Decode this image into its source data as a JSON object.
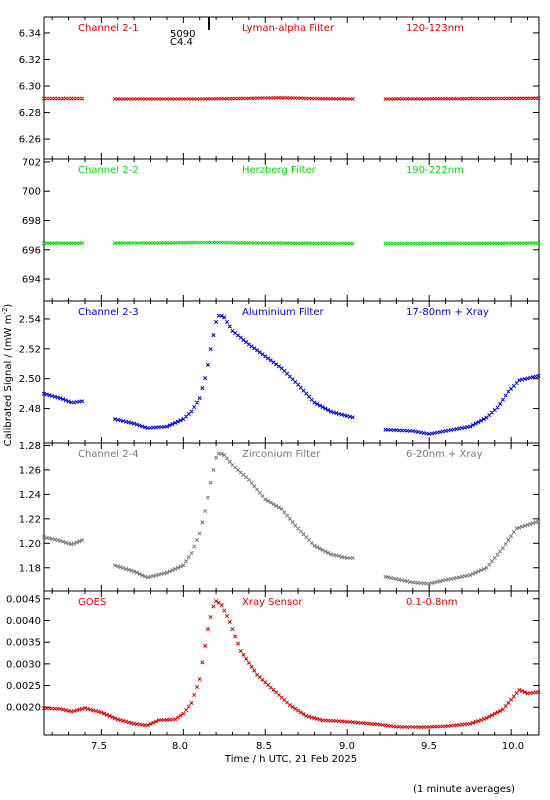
{
  "figure": {
    "ylabel": "Calibrated Signal / (mW m",
    "ylabel_sup": "-2",
    "ylabel_end": ")",
    "xlabel": "Time / h UTC, 21 Feb 2025",
    "footnote": "(1 minute averages)",
    "marker_top": "5090",
    "marker_bottom": "C4.4",
    "x_ticks": [
      "7.5",
      "8.0",
      "8.5",
      "9.0",
      "9.5",
      "10.0"
    ]
  },
  "chart_data": [
    {
      "type": "scatter",
      "name": "Channel 2-1",
      "filter": "Lyman-alpha Filter",
      "band": "120-123nm",
      "color": "#e00000",
      "xlim": [
        7.15,
        10.17
      ],
      "ylim": [
        6.245,
        6.352
      ],
      "y_ticks": [
        "6.26",
        "6.28",
        "6.30",
        "6.32",
        "6.34"
      ],
      "gaps": [
        [
          7.39,
          7.58
        ],
        [
          9.04,
          9.22
        ]
      ],
      "curve": [
        [
          7.15,
          6.2905
        ],
        [
          7.39,
          6.2905
        ],
        [
          7.58,
          6.2902
        ],
        [
          8.0,
          6.2902
        ],
        [
          8.3,
          6.2905
        ],
        [
          8.6,
          6.2912
        ],
        [
          8.8,
          6.2905
        ],
        [
          9.04,
          6.2903
        ],
        [
          9.22,
          6.2903
        ],
        [
          9.8,
          6.2905
        ],
        [
          10.17,
          6.2908
        ]
      ]
    },
    {
      "type": "scatter",
      "name": "Channel 2-2",
      "filter": "Herzberg Filter",
      "band": "190-222nm",
      "color": "#00dd00",
      "xlim": [
        7.15,
        10.17
      ],
      "ylim": [
        692.5,
        702.2
      ],
      "y_ticks": [
        "694",
        "696",
        "698",
        "700",
        "702"
      ],
      "gaps": [
        [
          7.39,
          7.58
        ],
        [
          9.04,
          9.22
        ]
      ],
      "curve": [
        [
          7.15,
          696.45
        ],
        [
          7.39,
          696.45
        ],
        [
          7.58,
          696.45
        ],
        [
          8.2,
          696.5
        ],
        [
          8.6,
          696.45
        ],
        [
          9.04,
          696.42
        ],
        [
          9.22,
          696.42
        ],
        [
          10.17,
          696.45
        ]
      ]
    },
    {
      "type": "scatter",
      "name": "Channel 2-3",
      "filter": "Aluminium Filter",
      "band": "17-80nm + Xray",
      "color": "#0000dd",
      "xlim": [
        7.15,
        10.17
      ],
      "ylim": [
        2.457,
        2.552
      ],
      "y_ticks": [
        "2.48",
        "2.50",
        "2.52",
        "2.54"
      ],
      "gaps": [
        [
          7.39,
          7.58
        ],
        [
          9.04,
          9.22
        ]
      ],
      "curve": [
        [
          7.15,
          2.49
        ],
        [
          7.25,
          2.487
        ],
        [
          7.32,
          2.484
        ],
        [
          7.39,
          2.485
        ],
        [
          7.58,
          2.473
        ],
        [
          7.7,
          2.47
        ],
        [
          7.78,
          2.467
        ],
        [
          7.9,
          2.468
        ],
        [
          8.0,
          2.473
        ],
        [
          8.05,
          2.478
        ],
        [
          8.1,
          2.487
        ],
        [
          8.14,
          2.503
        ],
        [
          8.17,
          2.522
        ],
        [
          8.2,
          2.538
        ],
        [
          8.22,
          2.543
        ],
        [
          8.25,
          2.541
        ],
        [
          8.3,
          2.532
        ],
        [
          8.4,
          2.523
        ],
        [
          8.5,
          2.515
        ],
        [
          8.6,
          2.507
        ],
        [
          8.7,
          2.496
        ],
        [
          8.8,
          2.484
        ],
        [
          8.9,
          2.478
        ],
        [
          9.0,
          2.475
        ],
        [
          9.04,
          2.474
        ],
        [
          9.22,
          2.466
        ],
        [
          9.4,
          2.465
        ],
        [
          9.5,
          2.463
        ],
        [
          9.6,
          2.465
        ],
        [
          9.75,
          2.468
        ],
        [
          9.85,
          2.474
        ],
        [
          9.92,
          2.481
        ],
        [
          9.98,
          2.491
        ],
        [
          10.05,
          2.499
        ],
        [
          10.17,
          2.502
        ]
      ]
    },
    {
      "type": "scatter",
      "name": "Channel 2-4",
      "filter": "Zirconium Filter",
      "band": "6-20nm + Xray",
      "color": "#787878",
      "xlim": [
        7.15,
        10.17
      ],
      "ylim": [
        1.161,
        1.282
      ],
      "y_ticks": [
        "1.18",
        "1.20",
        "1.22",
        "1.24",
        "1.26",
        "1.28"
      ],
      "gaps": [
        [
          7.39,
          7.58
        ],
        [
          9.04,
          9.22
        ]
      ],
      "curve": [
        [
          7.15,
          1.205
        ],
        [
          7.25,
          1.202
        ],
        [
          7.32,
          1.199
        ],
        [
          7.39,
          1.203
        ],
        [
          7.58,
          1.182
        ],
        [
          7.7,
          1.177
        ],
        [
          7.78,
          1.172
        ],
        [
          7.9,
          1.176
        ],
        [
          8.0,
          1.182
        ],
        [
          8.05,
          1.192
        ],
        [
          8.1,
          1.208
        ],
        [
          8.14,
          1.23
        ],
        [
          8.17,
          1.252
        ],
        [
          8.2,
          1.27
        ],
        [
          8.22,
          1.274
        ],
        [
          8.25,
          1.272
        ],
        [
          8.3,
          1.264
        ],
        [
          8.4,
          1.252
        ],
        [
          8.5,
          1.236
        ],
        [
          8.6,
          1.228
        ],
        [
          8.7,
          1.212
        ],
        [
          8.8,
          1.198
        ],
        [
          8.9,
          1.191
        ],
        [
          9.0,
          1.188
        ],
        [
          9.04,
          1.188
        ],
        [
          9.22,
          1.173
        ],
        [
          9.4,
          1.168
        ],
        [
          9.5,
          1.167
        ],
        [
          9.6,
          1.17
        ],
        [
          9.75,
          1.174
        ],
        [
          9.85,
          1.18
        ],
        [
          9.95,
          1.196
        ],
        [
          10.03,
          1.212
        ],
        [
          10.17,
          1.218
        ]
      ]
    },
    {
      "type": "scatter",
      "name": "GOES",
      "filter": "Xray Sensor",
      "band": "0.1-0.8nm",
      "color": "#e00000",
      "xlim": [
        7.15,
        10.17
      ],
      "ylim": [
        0.00136,
        0.00468
      ],
      "y_ticks": [
        "0.0020",
        "0.0025",
        "0.0030",
        "0.0035",
        "0.0040",
        "0.0045"
      ],
      "gaps": [],
      "curve": [
        [
          7.15,
          0.00198
        ],
        [
          7.25,
          0.00196
        ],
        [
          7.32,
          0.0019
        ],
        [
          7.4,
          0.00198
        ],
        [
          7.5,
          0.00188
        ],
        [
          7.6,
          0.00172
        ],
        [
          7.7,
          0.00162
        ],
        [
          7.78,
          0.00158
        ],
        [
          7.85,
          0.0017
        ],
        [
          7.95,
          0.00172
        ],
        [
          8.0,
          0.00185
        ],
        [
          8.05,
          0.0021
        ],
        [
          8.1,
          0.00265
        ],
        [
          8.15,
          0.0038
        ],
        [
          8.18,
          0.0043
        ],
        [
          8.2,
          0.00445
        ],
        [
          8.23,
          0.00438
        ],
        [
          8.28,
          0.004
        ],
        [
          8.35,
          0.0033
        ],
        [
          8.45,
          0.00275
        ],
        [
          8.55,
          0.0024
        ],
        [
          8.65,
          0.00205
        ],
        [
          8.75,
          0.0018
        ],
        [
          8.85,
          0.0017
        ],
        [
          8.95,
          0.00168
        ],
        [
          9.05,
          0.00165
        ],
        [
          9.2,
          0.0016
        ],
        [
          9.3,
          0.00155
        ],
        [
          9.45,
          0.00154
        ],
        [
          9.6,
          0.00156
        ],
        [
          9.75,
          0.00162
        ],
        [
          9.85,
          0.00175
        ],
        [
          9.95,
          0.00195
        ],
        [
          10.05,
          0.0024
        ],
        [
          10.1,
          0.00232
        ],
        [
          10.17,
          0.00235
        ]
      ]
    }
  ]
}
